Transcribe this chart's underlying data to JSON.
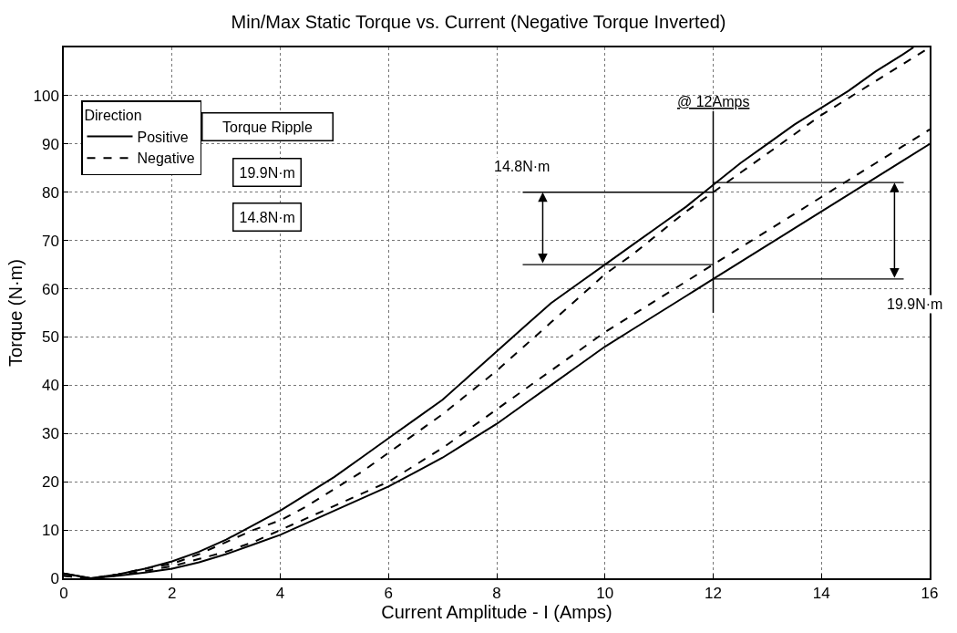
{
  "chart_data": {
    "type": "line",
    "title": "Min/Max Static Torque vs. Current (Negative Torque Inverted)",
    "xlabel": "Current Amplitude - I (Amps)",
    "ylabel": "Torque (N·m)",
    "legend_title": "Direction",
    "legend": "top left",
    "grid": true,
    "marker": "none",
    "xlim": [
      0,
      16
    ],
    "ylim": [
      0,
      110
    ],
    "xticks": [
      0,
      2,
      4,
      6,
      8,
      10,
      12,
      14,
      16
    ],
    "yticks": [
      0,
      10,
      20,
      30,
      40,
      50,
      60,
      70,
      80,
      90,
      100
    ],
    "series": [
      {
        "name": "Positive",
        "color": "#000000",
        "line_style": "solid",
        "x": [
          0,
          0.5,
          1,
          1.5,
          2,
          2.5,
          3,
          3.5,
          4,
          4.5,
          5,
          5.5,
          6,
          6.5,
          7,
          7.5,
          8,
          8.5,
          9,
          9.5,
          10,
          10.5,
          11,
          11.5,
          12,
          12.5,
          13,
          13.5,
          14,
          14.5,
          15,
          15.5,
          15.7
        ],
        "values": [
          1,
          0,
          0.8,
          2,
          3.5,
          5.5,
          8,
          11,
          14,
          17.5,
          21,
          25,
          29,
          33,
          37,
          42,
          47,
          52,
          57,
          61,
          65,
          69,
          73,
          77,
          81.5,
          86,
          90,
          94,
          97.5,
          101,
          105,
          108.5,
          110
        ]
      },
      {
        "color": "#000000",
        "line_style": "solid",
        "x": [
          0,
          0.5,
          1,
          1.5,
          2,
          2.5,
          3,
          3.5,
          4,
          4.5,
          5,
          5.5,
          6,
          6.5,
          7,
          7.5,
          8,
          8.5,
          9,
          9.5,
          10,
          10.5,
          11,
          11.5,
          12,
          12.5,
          13,
          13.5,
          14,
          14.5,
          15,
          15.5,
          16
        ],
        "values": [
          1,
          0,
          0.5,
          1.2,
          2,
          3.3,
          5,
          7,
          9,
          11.5,
          14,
          16.5,
          19,
          22,
          25,
          28.5,
          32,
          36,
          40,
          44,
          48,
          51.5,
          55,
          58.5,
          62,
          65.5,
          69,
          72.5,
          76,
          79.5,
          83,
          86.5,
          90
        ]
      },
      {
        "name": "Negative",
        "color": "#000000",
        "line_style": "dashed",
        "x": [
          0,
          0.5,
          1,
          1.5,
          2,
          2.5,
          3,
          3.5,
          4,
          4.5,
          5,
          5.5,
          6,
          6.5,
          7,
          7.5,
          8,
          8.5,
          9,
          9.5,
          10,
          10.5,
          11,
          11.5,
          12,
          12.5,
          13,
          13.5,
          14,
          14.5,
          15,
          15.5,
          16
        ],
        "values": [
          0.5,
          0,
          0.8,
          2,
          3,
          5,
          7.5,
          10,
          12,
          15,
          18.5,
          22,
          26,
          30,
          34,
          38.5,
          43,
          48,
          53,
          58,
          63,
          67,
          71.5,
          76,
          80,
          84,
          88,
          92,
          96,
          99.5,
          103,
          106.5,
          110
        ]
      },
      {
        "color": "#000000",
        "line_style": "dashed",
        "x": [
          0,
          0.5,
          1,
          1.5,
          2,
          2.5,
          3,
          3.5,
          4,
          4.5,
          5,
          5.5,
          6,
          6.5,
          7,
          7.5,
          8,
          8.5,
          9,
          9.5,
          10,
          10.5,
          11,
          11.5,
          12,
          12.5,
          13,
          13.5,
          14,
          14.5,
          15,
          15.5,
          16
        ],
        "values": [
          0.5,
          0,
          0.6,
          1.5,
          2.5,
          4,
          5.5,
          7.5,
          10,
          12.5,
          15,
          17.5,
          20,
          23.5,
          27,
          31,
          35,
          39,
          43,
          47,
          51,
          54.5,
          58,
          61.5,
          65,
          68.5,
          72,
          75.5,
          79,
          82.5,
          86,
          89.5,
          93
        ]
      }
    ],
    "ref_lines": [
      {
        "axis": "x",
        "value": 12,
        "label": "@ 12Amps"
      },
      {
        "axis": "y",
        "value": 80,
        "label": null
      },
      {
        "axis": "y",
        "value": 65,
        "label": null
      },
      {
        "axis": "y",
        "value": 82,
        "label": null
      },
      {
        "axis": "y",
        "value": 62,
        "label": null
      }
    ],
    "annotations": [
      {
        "text": "14.8N·m",
        "x": 8.85,
        "y": 80
      },
      {
        "text": "19.9N·m",
        "x": 15.35,
        "y": 62
      },
      "Torque Ripple",
      "19.9N·m",
      "14.8N·m"
    ]
  }
}
